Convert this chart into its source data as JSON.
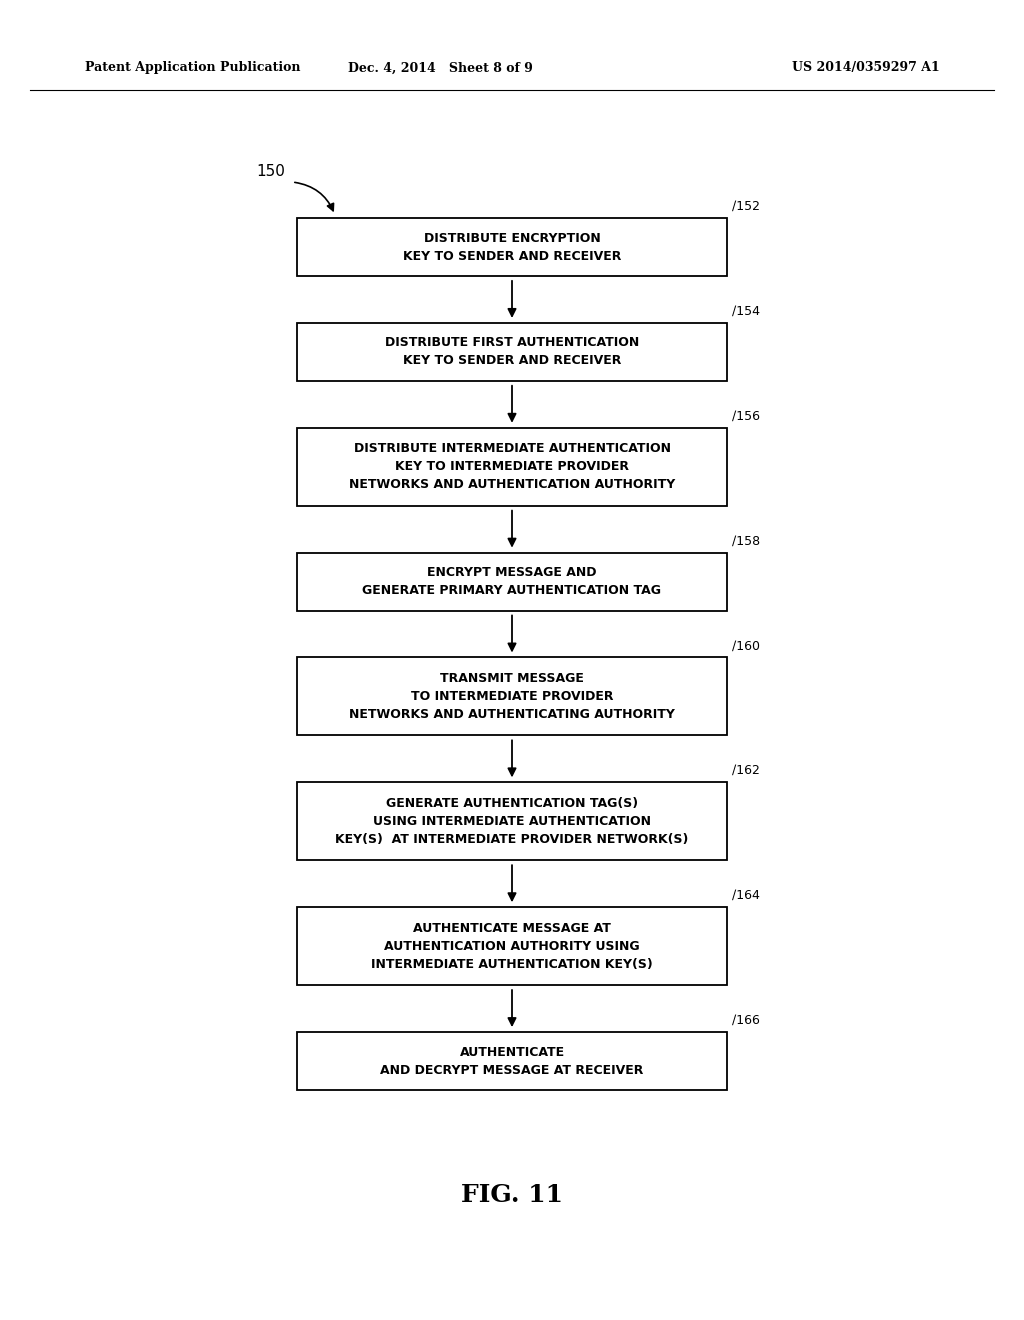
{
  "header_left": "Patent Application Publication",
  "header_mid": "Dec. 4, 2014   Sheet 8 of 9",
  "header_right": "US 2014/0359297 A1",
  "figure_label": "FIG. 11",
  "diagram_label": "150",
  "boxes": [
    {
      "id": 152,
      "lines": [
        "DISTRIBUTE ENCRYPTION",
        "KEY TO SENDER AND RECEIVER"
      ],
      "nlines": 2
    },
    {
      "id": 154,
      "lines": [
        "DISTRIBUTE FIRST AUTHENTICATION",
        "KEY TO SENDER AND RECEIVER"
      ],
      "nlines": 2
    },
    {
      "id": 156,
      "lines": [
        "DISTRIBUTE INTERMEDIATE AUTHENTICATION",
        "KEY TO INTERMEDIATE PROVIDER",
        "NETWORKS AND AUTHENTICATION AUTHORITY"
      ],
      "nlines": 3
    },
    {
      "id": 158,
      "lines": [
        "ENCRYPT MESSAGE AND",
        "GENERATE PRIMARY AUTHENTICATION TAG"
      ],
      "nlines": 2
    },
    {
      "id": 160,
      "lines": [
        "TRANSMIT MESSAGE",
        "TO INTERMEDIATE PROVIDER",
        "NETWORKS AND AUTHENTICATING AUTHORITY"
      ],
      "nlines": 3
    },
    {
      "id": 162,
      "lines": [
        "GENERATE AUTHENTICATION TAG(S)",
        "USING INTERMEDIATE AUTHENTICATION",
        "KEY(S)  AT INTERMEDIATE PROVIDER NETWORK(S)"
      ],
      "nlines": 3
    },
    {
      "id": 164,
      "lines": [
        "AUTHENTICATE MESSAGE AT",
        "AUTHENTICATION AUTHORITY USING",
        "INTERMEDIATE AUTHENTICATION KEY(S)"
      ],
      "nlines": 3
    },
    {
      "id": 166,
      "lines": [
        "AUTHENTICATE",
        "AND DECRYPT MESSAGE AT RECEIVER"
      ],
      "nlines": 2
    }
  ],
  "background_color": "#ffffff",
  "box_edge_color": "#000000",
  "text_color": "#000000",
  "arrow_color": "#000000",
  "font_size_box": 9,
  "font_size_label": 9,
  "font_size_header": 9,
  "font_size_fig": 18,
  "font_size_150": 11
}
